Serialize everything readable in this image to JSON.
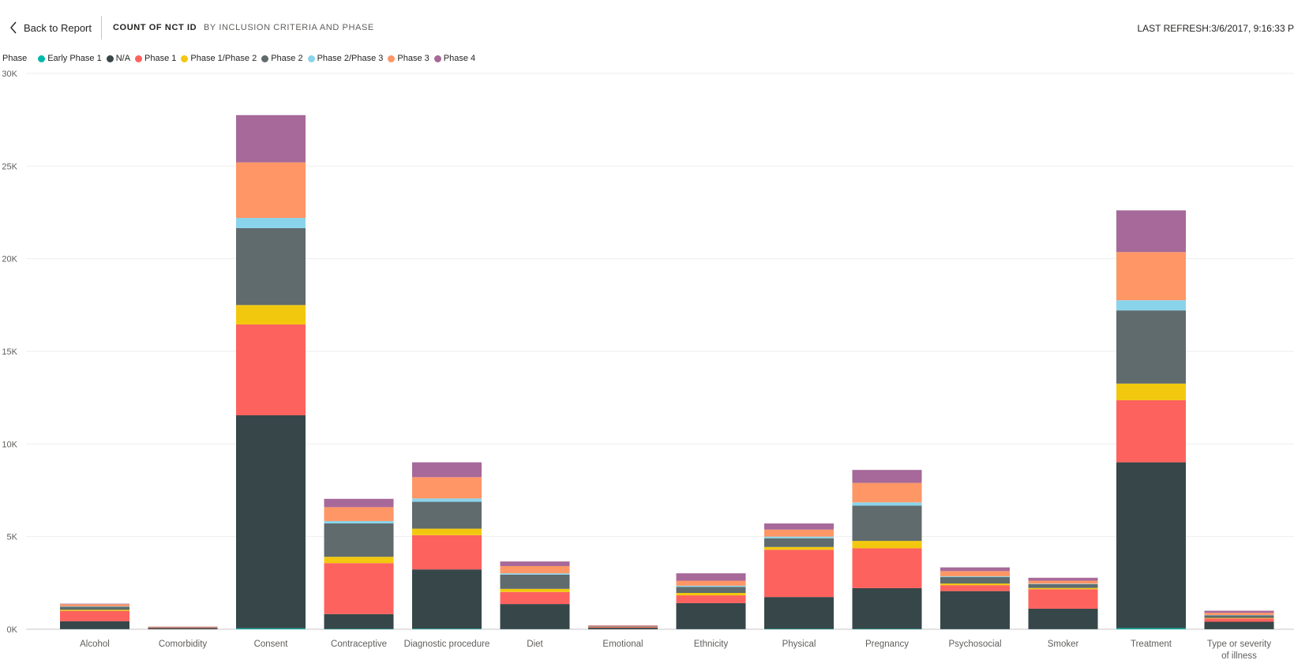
{
  "header": {
    "back_label": "Back to Report",
    "title": "COUNT OF NCT ID",
    "subtitle": "BY INCLUSION CRITERIA AND PHASE",
    "refresh": "LAST REFRESH:3/6/2017, 9:16:33 P"
  },
  "legend": {
    "title": "Phase",
    "items": [
      "Early Phase 1",
      "N/A",
      "Phase 1",
      "Phase 1/Phase 2",
      "Phase 2",
      "Phase 2/Phase 3",
      "Phase 3",
      "Phase 4"
    ]
  },
  "chart_data": {
    "type": "bar",
    "stacked": true,
    "categories": [
      "Alcohol",
      "Comorbidity",
      "Consent",
      "Contraceptive",
      "Diagnostic procedure",
      "Diet",
      "Emotional",
      "Ethnicity",
      "Physical",
      "Pregnancy",
      "Psychosocial",
      "Smoker",
      "Treatment",
      "Type or severity of illness"
    ],
    "ylim": [
      0,
      30000
    ],
    "yticks": [
      0,
      5000,
      10000,
      15000,
      20000,
      25000,
      30000
    ],
    "ytick_labels": [
      "0K",
      "5K",
      "10K",
      "15K",
      "20K",
      "25K",
      "30K"
    ],
    "grid": true,
    "legend_position": "top-left",
    "colors": [
      "#01b8aa",
      "#374649",
      "#fd625e",
      "#f2c80f",
      "#5f6b6d",
      "#8ad4eb",
      "#fe9666",
      "#a66999"
    ],
    "series": [
      {
        "name": "Early Phase 1",
        "values": [
          10,
          5,
          50,
          20,
          30,
          10,
          2,
          10,
          20,
          20,
          10,
          10,
          60,
          5
        ]
      },
      {
        "name": "N/A",
        "values": [
          420,
          60,
          11500,
          800,
          3200,
          1350,
          80,
          1400,
          1720,
          2200,
          2050,
          1100,
          8950,
          400
        ]
      },
      {
        "name": "Phase 1",
        "values": [
          560,
          30,
          4900,
          2750,
          1850,
          650,
          40,
          420,
          2550,
          2150,
          320,
          1050,
          3350,
          180
        ]
      },
      {
        "name": "Phase 1/Phase 2",
        "values": [
          60,
          5,
          1050,
          340,
          350,
          170,
          5,
          130,
          150,
          400,
          90,
          70,
          900,
          30
        ]
      },
      {
        "name": "Phase 2",
        "values": [
          170,
          20,
          4150,
          1800,
          1450,
          770,
          30,
          330,
          470,
          1900,
          350,
          200,
          3950,
          140
        ]
      },
      {
        "name": "Phase 2/Phase 3",
        "values": [
          20,
          2,
          550,
          130,
          180,
          70,
          3,
          60,
          90,
          180,
          40,
          30,
          550,
          15
        ]
      },
      {
        "name": "Phase 3",
        "values": [
          110,
          20,
          3000,
          750,
          1150,
          390,
          30,
          270,
          380,
          1050,
          280,
          160,
          2600,
          120
        ]
      },
      {
        "name": "Phase 4",
        "values": [
          30,
          8,
          2550,
          450,
          800,
          250,
          20,
          400,
          330,
          700,
          200,
          160,
          2250,
          110
        ]
      }
    ]
  }
}
